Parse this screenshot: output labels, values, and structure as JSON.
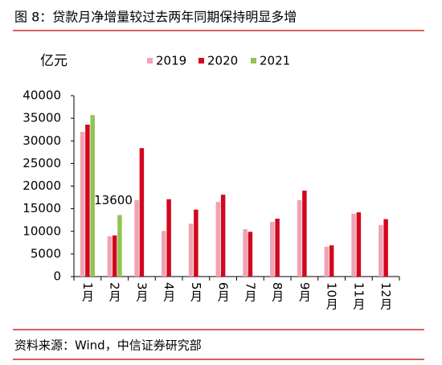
{
  "chart_data": {
    "type": "bar",
    "title": "图 8：贷款月净增量较过去两年同期保持明显多增",
    "y_axis_label": "亿元",
    "source": "资料来源：Wind，中信证券研究部",
    "categories": [
      "1月",
      "2月",
      "3月",
      "4月",
      "5月",
      "6月",
      "7月",
      "8月",
      "9月",
      "10月",
      "11月",
      "12月"
    ],
    "series": [
      {
        "name": "2019",
        "color": "#f0a3b3",
        "values": [
          32000,
          8900,
          16900,
          10100,
          11700,
          16500,
          10500,
          12100,
          16900,
          6600,
          13900,
          11400
        ]
      },
      {
        "name": "2020",
        "color": "#d2071e",
        "values": [
          33600,
          9100,
          28400,
          17100,
          14800,
          18100,
          9900,
          12800,
          19000,
          6900,
          14200,
          12700
        ]
      },
      {
        "name": "2021",
        "color": "#92c353",
        "values": [
          35700,
          13600,
          null,
          null,
          null,
          null,
          null,
          null,
          null,
          null,
          null,
          null
        ]
      }
    ],
    "ylim": [
      0,
      40000
    ],
    "yticks": [
      0,
      5000,
      10000,
      15000,
      20000,
      25000,
      30000,
      35000,
      40000
    ],
    "legend": "top"
  }
}
